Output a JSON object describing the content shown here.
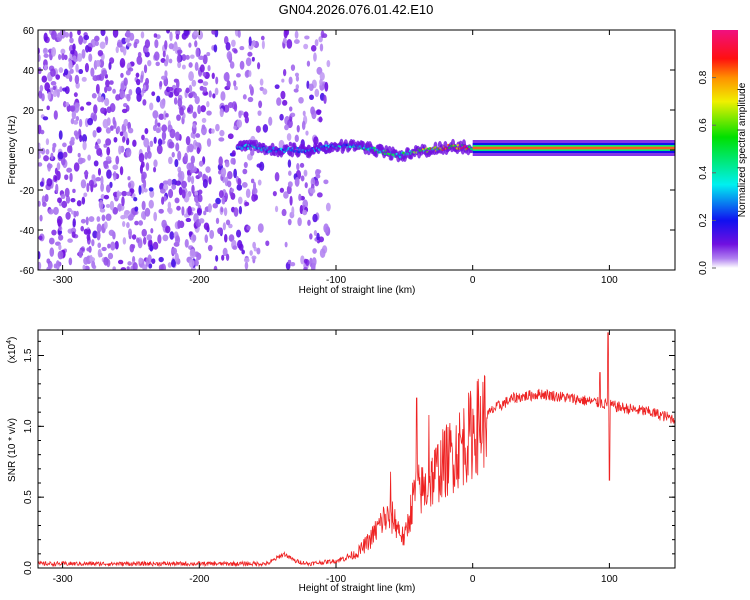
{
  "title": "GN04.2026.076.01.42.E10",
  "chart_data": [
    {
      "type": "heatmap",
      "title": "GN04.2026.076.01.42.E10",
      "xlabel": "Height of straight line (km)",
      "ylabel": "Frequency (Hz)",
      "xlim": [
        -318,
        148
      ],
      "ylim": [
        -60,
        60
      ],
      "xticks": [
        -300,
        -200,
        -100,
        0,
        100
      ],
      "yticks": [
        -60,
        -40,
        -20,
        0,
        20,
        40,
        60
      ],
      "xtick_labels": [
        "-300",
        "-200",
        "-100",
        "0",
        "100"
      ],
      "ytick_labels": [
        "-60",
        "-40",
        "-20",
        "0",
        "20",
        "40",
        "60"
      ],
      "noise_region_km": [
        -318,
        -105
      ],
      "noise_gap_km": [
        -152,
        -140
      ],
      "ridge": [
        {
          "x": -172,
          "f": 1,
          "a": 0.3
        },
        {
          "x": -160,
          "f": 2,
          "a": 0.35
        },
        {
          "x": -150,
          "f": 0,
          "a": 0.3
        },
        {
          "x": -120,
          "f": 0,
          "a": 0.25
        },
        {
          "x": -100,
          "f": 2,
          "a": 0.3
        },
        {
          "x": -85,
          "f": 2,
          "a": 0.4
        },
        {
          "x": -70,
          "f": 0,
          "a": 0.45
        },
        {
          "x": -55,
          "f": -3,
          "a": 0.5
        },
        {
          "x": -45,
          "f": -1,
          "a": 0.55
        },
        {
          "x": -30,
          "f": 0,
          "a": 0.7
        },
        {
          "x": -15,
          "f": 2,
          "a": 0.75
        },
        {
          "x": 0,
          "f": 1,
          "a": 0.9
        },
        {
          "x": 148,
          "f": 1,
          "a": 0.95
        }
      ],
      "colorbar": {
        "label": "Normalized spectral amplitude",
        "ticks": [
          0.0,
          0.2,
          0.4,
          0.6,
          0.8
        ],
        "tick_labels": [
          "0.0",
          "0.2",
          "0.4",
          "0.6",
          "0.8"
        ],
        "range": [
          0,
          1
        ]
      }
    },
    {
      "type": "line",
      "xlabel": "Height of straight line (km)",
      "ylabel": "SNR (10 * v/v)",
      "yscale_label": "(x10",
      "yscale_exp": "4",
      "xlim": [
        -318,
        148
      ],
      "ylim": [
        0,
        1.68
      ],
      "xticks": [
        -300,
        -200,
        -100,
        0,
        100
      ],
      "yticks": [
        0,
        0.5,
        1.0,
        1.5
      ],
      "xtick_labels": [
        "-300",
        "-200",
        "-100",
        "0",
        "100"
      ],
      "ytick_labels": [
        "0.0",
        "0.5",
        "1.0",
        "1.5"
      ],
      "color": "#ee2222",
      "series": [
        {
          "name": "SNR",
          "x": [
            -318,
            -200,
            -150,
            -138,
            -130,
            -120,
            -100,
            -85,
            -75,
            -65,
            -58,
            -50,
            -42,
            -35,
            -25,
            -15,
            -5,
            5,
            15,
            30,
            50,
            70,
            90,
            100,
            110,
            130,
            148
          ],
          "y": [
            0.03,
            0.03,
            0.03,
            0.1,
            0.05,
            0.03,
            0.05,
            0.1,
            0.2,
            0.35,
            0.35,
            0.2,
            0.55,
            0.55,
            0.7,
            0.8,
            0.9,
            1.02,
            1.12,
            1.2,
            1.23,
            1.2,
            1.17,
            1.15,
            1.13,
            1.1,
            1.05
          ]
        }
      ],
      "spikes": [
        {
          "x": -41,
          "y": 1.2
        },
        {
          "x": -32,
          "y": 1.08
        },
        {
          "x": -60,
          "y": 0.68
        },
        {
          "x": 99,
          "y": 1.66
        },
        {
          "x": 100,
          "y": 0.62
        },
        {
          "x": 93,
          "y": 1.38
        }
      ]
    }
  ]
}
